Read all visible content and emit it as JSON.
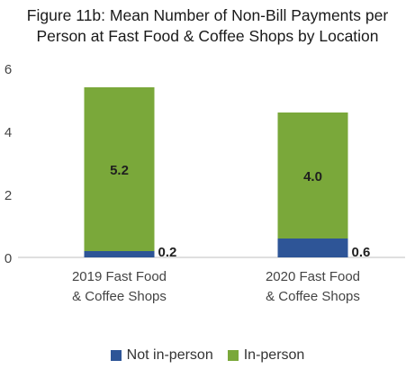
{
  "chart_data": {
    "type": "bar",
    "stacked": true,
    "title_lines": [
      "Figure 11b: Mean Number of Non-Bill Payments per",
      "Person at Fast Food & Coffee Shops by Location"
    ],
    "categories": [
      [
        "2019 Fast Food",
        "& Coffee Shops"
      ],
      [
        "2020 Fast Food",
        "& Coffee Shops"
      ]
    ],
    "series": [
      {
        "name": "Not in-person",
        "color": "#2e5597",
        "values": [
          0.2,
          0.6
        ],
        "labels": [
          "0.2",
          "0.6"
        ]
      },
      {
        "name": "In-person",
        "color": "#7aa83a",
        "values": [
          5.2,
          4.0
        ],
        "labels": [
          "5.2",
          "4.0"
        ]
      }
    ],
    "ylim": [
      0,
      6
    ],
    "yticks": [
      0,
      2,
      4,
      6
    ],
    "ytick_labels": [
      "0",
      "2",
      "4",
      "6"
    ],
    "grid": false,
    "legend_position": "bottom"
  }
}
